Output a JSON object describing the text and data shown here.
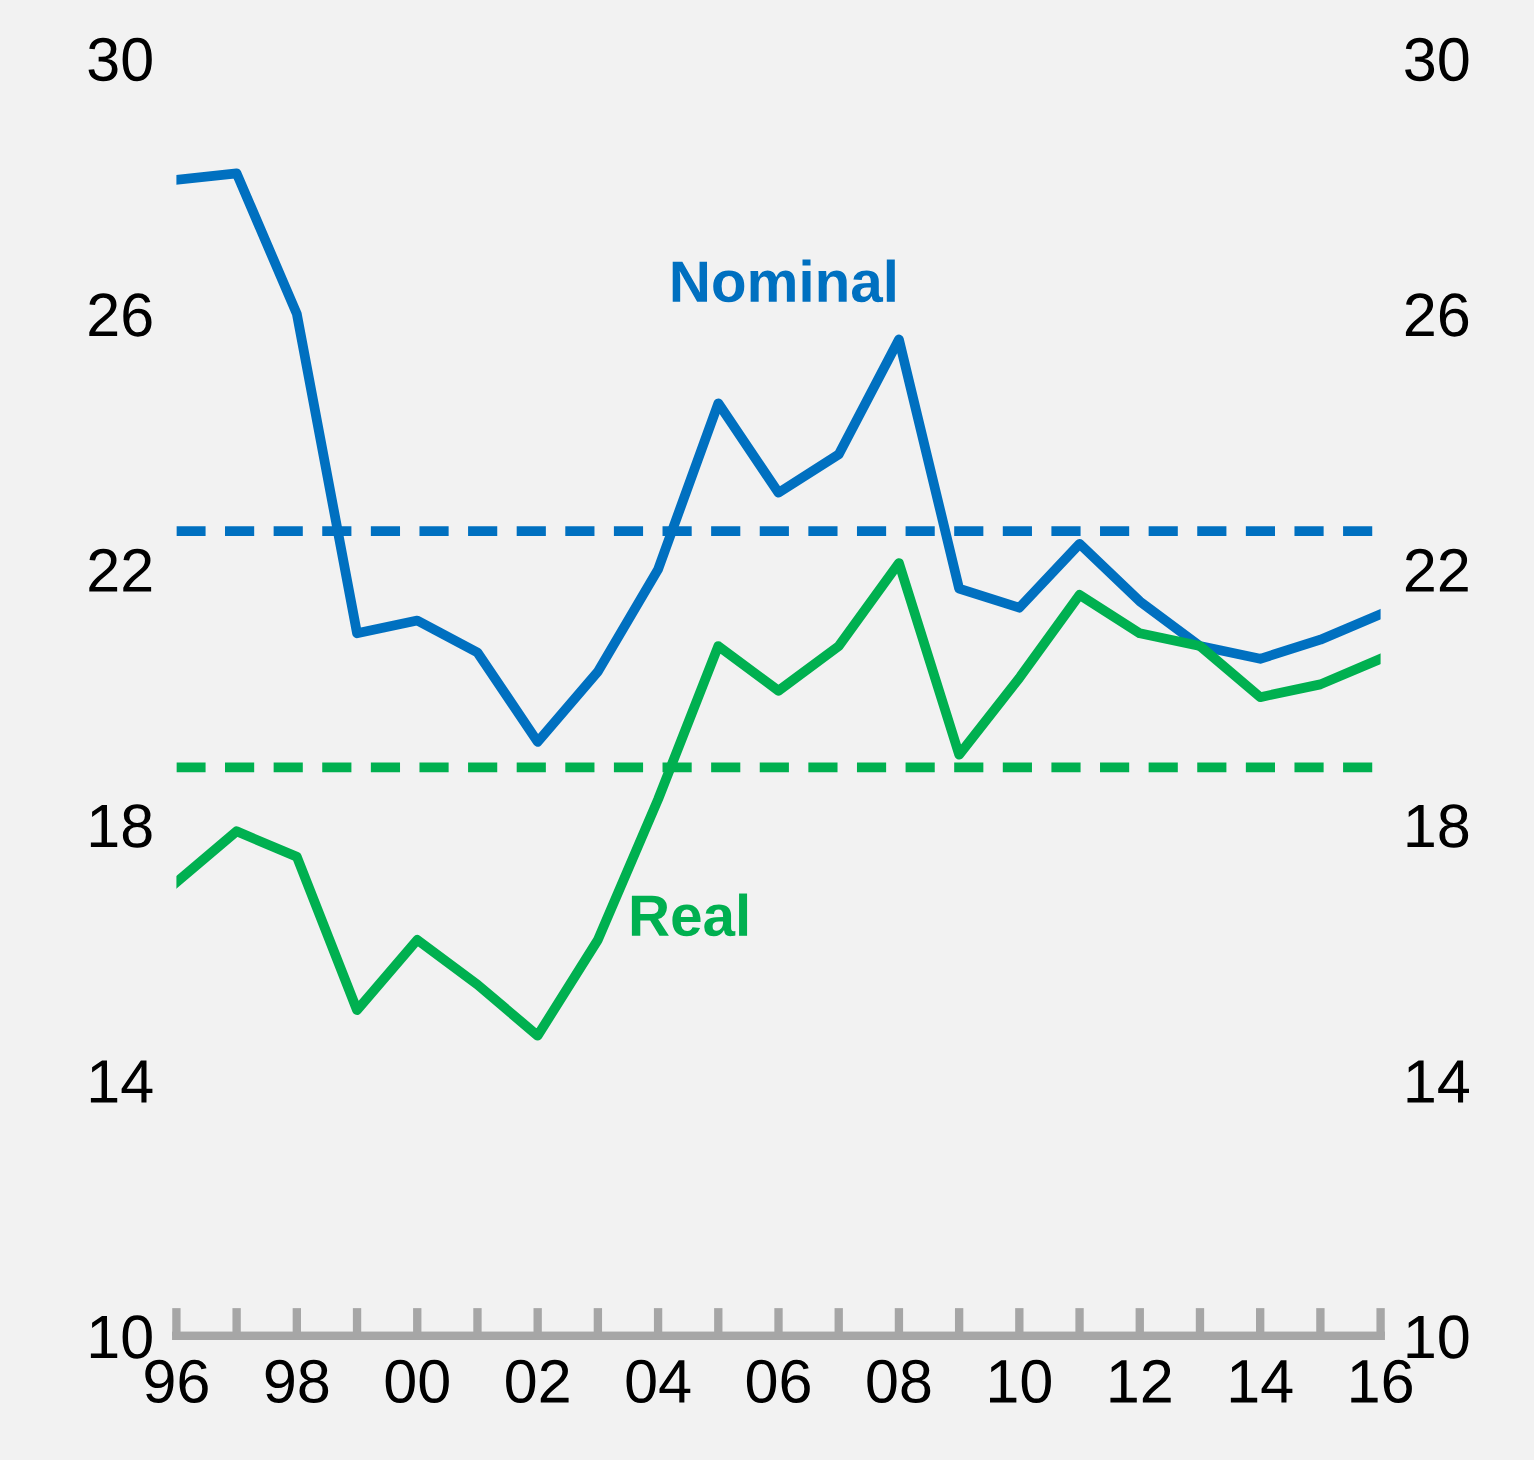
{
  "chart_data": {
    "type": "line",
    "x": [
      1996,
      1997,
      1998,
      1999,
      2000,
      2001,
      2002,
      2003,
      2004,
      2005,
      2006,
      2007,
      2008,
      2009,
      2010,
      2011,
      2012,
      2013,
      2014,
      2015,
      2016
    ],
    "series": [
      {
        "name": "Nominal",
        "color": "#0070c0",
        "values": [
          28.1,
          28.2,
          26.0,
          21.0,
          21.2,
          20.7,
          19.3,
          20.4,
          22.0,
          24.6,
          23.2,
          23.8,
          25.6,
          21.7,
          21.4,
          22.4,
          21.5,
          20.8,
          20.6,
          20.9,
          21.3
        ]
      },
      {
        "name": "Real",
        "color": "#00b050",
        "values": [
          17.1,
          17.9,
          17.5,
          15.1,
          16.2,
          15.5,
          14.7,
          16.2,
          18.4,
          20.8,
          20.1,
          20.8,
          22.1,
          19.1,
          20.3,
          21.6,
          21.0,
          20.8,
          20.0,
          20.2,
          20.6
        ]
      }
    ],
    "ref_lines": [
      {
        "axis": "y",
        "value": 22.6,
        "color": "#0070c0",
        "line_style": "dashed"
      },
      {
        "axis": "y",
        "value": 18.9,
        "color": "#00b050",
        "line_style": "dashed"
      }
    ],
    "xlim": [
      1996,
      2016
    ],
    "xticks": [
      {
        "value": 1996,
        "label": "96"
      },
      {
        "value": 1997,
        "label": null
      },
      {
        "value": 1998,
        "label": "98"
      },
      {
        "value": 1999,
        "label": null
      },
      {
        "value": 2000,
        "label": "00"
      },
      {
        "value": 2001,
        "label": null
      },
      {
        "value": 2002,
        "label": "02"
      },
      {
        "value": 2003,
        "label": null
      },
      {
        "value": 2004,
        "label": "04"
      },
      {
        "value": 2005,
        "label": null
      },
      {
        "value": 2006,
        "label": "06"
      },
      {
        "value": 2007,
        "label": null
      },
      {
        "value": 2008,
        "label": "08"
      },
      {
        "value": 2009,
        "label": null
      },
      {
        "value": 2010,
        "label": "10"
      },
      {
        "value": 2011,
        "label": null
      },
      {
        "value": 2012,
        "label": "12"
      },
      {
        "value": 2013,
        "label": null
      },
      {
        "value": 2014,
        "label": "14"
      },
      {
        "value": 2015,
        "label": null
      },
      {
        "value": 2016,
        "label": "16"
      }
    ],
    "ylim": [
      10,
      30
    ],
    "yticks": [
      10,
      14,
      18,
      22,
      26,
      30
    ],
    "y2lim": [
      10,
      30
    ],
    "y2ticks": [
      10,
      14,
      18,
      22,
      26,
      30
    ],
    "grid": false,
    "legend": false,
    "marker": "none",
    "line_style": "solid"
  }
}
